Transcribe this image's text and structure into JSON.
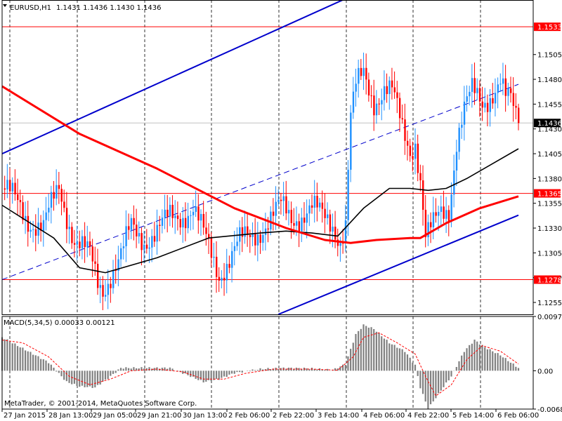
{
  "header": {
    "symbol": "EURUSD,H1",
    "ohlc": "1.1431 1.1436 1.1430 1.1436"
  },
  "indicator": {
    "label": "MACD(5,34,5) 0.00033 0.00121"
  },
  "copyright": "MetaTrader, © 2001-2014, MetaQuotes Software Corp.",
  "chart_data": [
    {
      "type": "candlestick",
      "title": "EURUSD,H1",
      "ylim": [
        1.1243,
        1.156
      ],
      "yticks": [
        "1.1505",
        "1.1480",
        "1.1455",
        "1.1430",
        "1.1405",
        "1.1380",
        "1.1355",
        "1.1330",
        "1.1305",
        "1.1280",
        "1.1255"
      ],
      "xticks": [
        "27 Jan 2015",
        "28 Jan 13:00",
        "29 Jan 05:00",
        "29 Jan 21:00",
        "30 Jan 13:00",
        "2 Feb 06:00",
        "2 Feb 22:00",
        "3 Feb 14:00",
        "4 Feb 06:00",
        "4 Feb 22:00",
        "5 Feb 14:00",
        "6 Feb 06:00"
      ],
      "horizontal_levels": [
        {
          "value": 1.1533,
          "label": "1.1533",
          "color": "#ff0000"
        },
        {
          "value": 1.1365,
          "label": "1.1365",
          "color": "#ff0000"
        },
        {
          "value": 1.1278,
          "label": "1.1278",
          "color": "#ff0000"
        }
      ],
      "current_price": {
        "value": 1.1436,
        "label": "1.1436"
      },
      "bull_color": "#1e90ff",
      "bear_color": "#ff0000",
      "close_path": [
        [
          0,
          1.137
        ],
        [
          4,
          1.136
        ],
        [
          10,
          1.134
        ],
        [
          16,
          1.133
        ],
        [
          22,
          1.137
        ],
        [
          28,
          1.132
        ],
        [
          34,
          1.13
        ],
        [
          37,
          1.1275
        ],
        [
          39,
          1.127
        ],
        [
          42,
          1.1285
        ],
        [
          46,
          1.13
        ],
        [
          50,
          1.133
        ],
        [
          55,
          1.132
        ],
        [
          60,
          1.1325
        ],
        [
          65,
          1.134
        ],
        [
          70,
          1.1345
        ],
        [
          74,
          1.135
        ],
        [
          79,
          1.1315
        ],
        [
          84,
          1.1285
        ],
        [
          88,
          1.13
        ],
        [
          92,
          1.1315
        ],
        [
          96,
          1.132
        ],
        [
          100,
          1.133
        ],
        [
          104,
          1.134
        ],
        [
          108,
          1.135
        ],
        [
          112,
          1.134
        ],
        [
          116,
          1.1345
        ],
        [
          120,
          1.135
        ],
        [
          124,
          1.134
        ],
        [
          128,
          1.1335
        ],
        [
          131,
          1.132
        ],
        [
          133,
          1.1335
        ],
        [
          134,
          1.139
        ],
        [
          135,
          1.144
        ],
        [
          137,
          1.147
        ],
        [
          140,
          1.1485
        ],
        [
          144,
          1.146
        ],
        [
          148,
          1.147
        ],
        [
          151,
          1.1465
        ],
        [
          155,
          1.143
        ],
        [
          158,
          1.141
        ],
        [
          160,
          1.142
        ],
        [
          162,
          1.138
        ],
        [
          164,
          1.132
        ],
        [
          167,
          1.133
        ],
        [
          170,
          1.1345
        ],
        [
          173,
          1.135
        ],
        [
          176,
          1.142
        ],
        [
          179,
          1.145
        ],
        [
          182,
          1.1465
        ],
        [
          186,
          1.1455
        ],
        [
          190,
          1.147
        ],
        [
          193,
          1.148
        ],
        [
          195,
          1.146
        ],
        [
          197,
          1.1455
        ],
        [
          199,
          1.144
        ],
        [
          200,
          1.1436
        ]
      ],
      "series": [
        {
          "name": "",
          "color": "#000000",
          "values": [
            [
              0,
              1.1353
            ],
            [
              20,
              1.132
            ],
            [
              30,
              1.129
            ],
            [
              40,
              1.1285
            ],
            [
              60,
              1.13
            ],
            [
              80,
              1.132
            ],
            [
              100,
              1.1325
            ],
            [
              110,
              1.1327
            ],
            [
              120,
              1.1325
            ],
            [
              130,
              1.1322
            ],
            [
              140,
              1.135
            ],
            [
              150,
              1.137
            ],
            [
              158,
              1.137
            ],
            [
              165,
              1.1368
            ],
            [
              172,
              1.137
            ],
            [
              180,
              1.138
            ],
            [
              190,
              1.1395
            ],
            [
              200,
              1.141
            ]
          ]
        },
        {
          "name": "",
          "color": "#ff0000",
          "values": [
            [
              0,
              1.1473
            ],
            [
              30,
              1.1425
            ],
            [
              60,
              1.139
            ],
            [
              90,
              1.135
            ],
            [
              110,
              1.133
            ],
            [
              125,
              1.1318
            ],
            [
              135,
              1.1315
            ],
            [
              145,
              1.1318
            ],
            [
              158,
              1.132
            ],
            [
              162,
              1.132
            ],
            [
              172,
              1.1335
            ],
            [
              185,
              1.135
            ],
            [
              200,
              1.1362
            ]
          ]
        }
      ],
      "trend_channel": {
        "color": "#0000cc",
        "lines": [
          {
            "from": [
              0,
              1.1405
            ],
            "to": [
              200,
              1.164
            ],
            "dashed": false
          },
          {
            "from": [
              0,
              1.1278
            ],
            "to": [
              200,
              1.1475
            ],
            "dashed": true
          },
          {
            "from": [
              107,
              1.1243
            ],
            "to": [
              200,
              1.1343
            ],
            "dashed": false
          }
        ]
      }
    },
    {
      "type": "bar",
      "title": "MACD(5,34,5) 0.00033 0.00121",
      "ylim": [
        -0.00687,
        0.00973
      ],
      "yticks": [
        "0.00973",
        "0.00",
        "-0.00687"
      ],
      "histogram_color": "#808080",
      "signal_color": "#ff0000",
      "histogram_path": [
        [
          0,
          0.006
        ],
        [
          8,
          0.004
        ],
        [
          18,
          0.0015
        ],
        [
          25,
          -0.002
        ],
        [
          30,
          -0.0028
        ],
        [
          36,
          -0.003
        ],
        [
          42,
          -0.001
        ],
        [
          46,
          0.0005
        ],
        [
          55,
          0.0005
        ],
        [
          65,
          0.0005
        ],
        [
          72,
          -0.0008
        ],
        [
          78,
          -0.002
        ],
        [
          84,
          -0.0015
        ],
        [
          90,
          -0.0004
        ],
        [
          100,
          0.0003
        ],
        [
          110,
          0.0005
        ],
        [
          120,
          0.0004
        ],
        [
          128,
          0.0001
        ],
        [
          133,
          0.0012
        ],
        [
          137,
          0.0065
        ],
        [
          140,
          0.0082
        ],
        [
          144,
          0.0075
        ],
        [
          150,
          0.005
        ],
        [
          156,
          0.0035
        ],
        [
          160,
          0.001
        ],
        [
          162,
          -0.003
        ],
        [
          165,
          -0.0068
        ],
        [
          170,
          -0.0035
        ],
        [
          174,
          -0.001
        ],
        [
          179,
          0.0035
        ],
        [
          183,
          0.0055
        ],
        [
          187,
          0.0042
        ],
        [
          193,
          0.0028
        ],
        [
          200,
          0.0005
        ]
      ],
      "signal_path": [
        [
          0,
          0.0055
        ],
        [
          8,
          0.005
        ],
        [
          18,
          0.0025
        ],
        [
          26,
          -0.001
        ],
        [
          34,
          -0.0025
        ],
        [
          42,
          -0.0015
        ],
        [
          50,
          0.0
        ],
        [
          60,
          0.0003
        ],
        [
          70,
          -0.0002
        ],
        [
          78,
          -0.0015
        ],
        [
          86,
          -0.0015
        ],
        [
          94,
          -0.0005
        ],
        [
          105,
          0.0003
        ],
        [
          120,
          0.0003
        ],
        [
          130,
          0.0001
        ],
        [
          136,
          0.0025
        ],
        [
          140,
          0.006
        ],
        [
          146,
          0.0068
        ],
        [
          153,
          0.005
        ],
        [
          160,
          0.003
        ],
        [
          164,
          -0.001
        ],
        [
          168,
          -0.0045
        ],
        [
          174,
          -0.0025
        ],
        [
          180,
          0.002
        ],
        [
          186,
          0.0045
        ],
        [
          193,
          0.0035
        ],
        [
          200,
          0.0012
        ]
      ]
    }
  ]
}
